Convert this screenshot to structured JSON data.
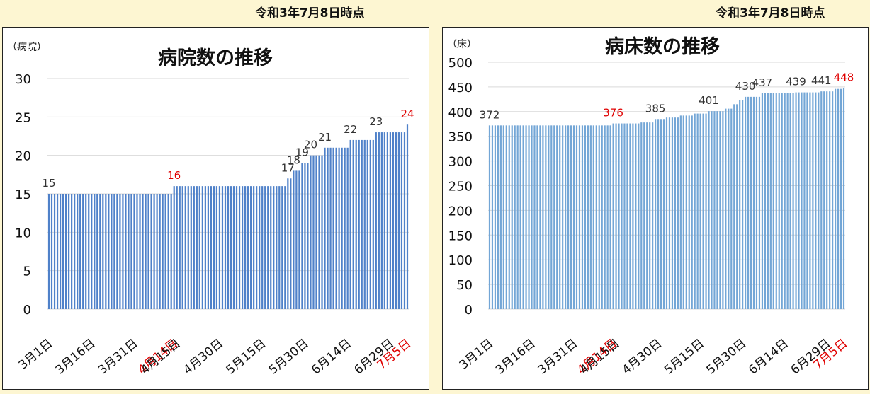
{
  "header": {
    "left_asof": "令和3年7月8日時点",
    "right_asof": "令和3年7月8日時点"
  },
  "colors": {
    "bar": "#4f81c9",
    "bar_right": "#73a6d6",
    "highlight": "#e00000",
    "grid": "#d9d9d9"
  },
  "chart_data": [
    {
      "type": "bar",
      "title": "病院数の推移",
      "ylabel": "（病院）",
      "ylim": [
        0,
        30
      ],
      "yticks": [
        0,
        5,
        10,
        15,
        20,
        25,
        30
      ],
      "xticks": [
        "3月1日",
        "3月16日",
        "3月31日",
        "4月14日",
        "4月15日",
        "4月30日",
        "5月15日",
        "5月30日",
        "6月14日",
        "6月29日",
        "7月5日"
      ],
      "highlight_xticks": [
        "4月14日",
        "7月5日"
      ],
      "steps": [
        {
          "from": "3月1日",
          "value": 15
        },
        {
          "from": "4月14日",
          "value": 16
        },
        {
          "from": "5月24日",
          "value": 17
        },
        {
          "from": "5月26日",
          "value": 18
        },
        {
          "from": "5月29日",
          "value": 19
        },
        {
          "from": "6月1日",
          "value": 20
        },
        {
          "from": "6月6日",
          "value": 21
        },
        {
          "from": "6月15日",
          "value": 22
        },
        {
          "from": "6月24日",
          "value": 23
        },
        {
          "from": "7月5日",
          "value": 24
        }
      ],
      "data_labels": [
        {
          "date": "3月1日",
          "value": 15
        },
        {
          "date": "4月14日",
          "value": 16,
          "highlight": true
        },
        {
          "date": "5月24日",
          "value": 17
        },
        {
          "date": "5月26日",
          "value": 18
        },
        {
          "date": "5月29日",
          "value": 19
        },
        {
          "date": "6月1日",
          "value": 20
        },
        {
          "date": "6月6日",
          "value": 21
        },
        {
          "date": "6月15日",
          "value": 22
        },
        {
          "date": "6月24日",
          "value": 23
        },
        {
          "date": "7月5日",
          "value": 24,
          "highlight": true
        }
      ],
      "grid": true,
      "legend": "none"
    },
    {
      "type": "bar",
      "title": "病床数の推移",
      "ylabel": "（床）",
      "ylim": [
        0,
        500
      ],
      "yticks": [
        0,
        50,
        100,
        150,
        200,
        250,
        300,
        350,
        400,
        450,
        500
      ],
      "xticks": [
        "3月1日",
        "3月16日",
        "3月31日",
        "4月14日",
        "4月15日",
        "4月30日",
        "5月15日",
        "5月30日",
        "6月14日",
        "6月29日",
        "7月5日"
      ],
      "highlight_xticks": [
        "4月14日",
        "7月5日"
      ],
      "steps": [
        {
          "from": "3月1日",
          "value": 372
        },
        {
          "from": "4月14日",
          "value": 376
        },
        {
          "from": "4月24日",
          "value": 378
        },
        {
          "from": "4月29日",
          "value": 385
        },
        {
          "from": "5月3日",
          "value": 388
        },
        {
          "from": "5月8日",
          "value": 392
        },
        {
          "from": "5月13日",
          "value": 396
        },
        {
          "from": "5月18日",
          "value": 401
        },
        {
          "from": "5月24日",
          "value": 406
        },
        {
          "from": "5月27日",
          "value": 415
        },
        {
          "from": "5月29日",
          "value": 423
        },
        {
          "from": "5月31日",
          "value": 430
        },
        {
          "from": "6月6日",
          "value": 437
        },
        {
          "from": "6月18日",
          "value": 439
        },
        {
          "from": "6月27日",
          "value": 441
        },
        {
          "from": "7月2日",
          "value": 446
        },
        {
          "from": "7月5日",
          "value": 448
        }
      ],
      "data_labels": [
        {
          "date": "3月1日",
          "value": 372
        },
        {
          "date": "4月14日",
          "value": 376,
          "highlight": true
        },
        {
          "date": "4月29日",
          "value": 385
        },
        {
          "date": "5月18日",
          "value": 401
        },
        {
          "date": "5月31日",
          "value": 430
        },
        {
          "date": "6月6日",
          "value": 437
        },
        {
          "date": "6月18日",
          "value": 439
        },
        {
          "date": "6月27日",
          "value": 441
        },
        {
          "date": "7月5日",
          "value": 448,
          "highlight": true
        }
      ],
      "grid": true,
      "legend": "none"
    }
  ]
}
